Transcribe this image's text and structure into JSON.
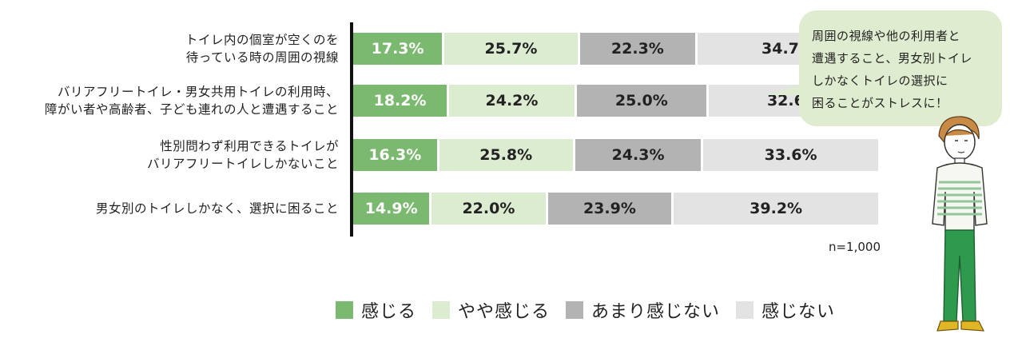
{
  "chart_data": {
    "type": "bar",
    "orientation": "horizontal",
    "stacked": true,
    "normalized_percent": true,
    "categories": [
      [
        "トイレ内の個室が空くのを",
        "待っている時の周囲の視線"
      ],
      [
        "バリアフリートイレ・男女共用トイレの利用時、",
        "障がい者や高齢者、子ども連れの人と遭遇すること"
      ],
      [
        "性別問わず利用できるトイレが",
        "バリアフリートイレしかないこと"
      ],
      [
        "男女別のトイレしかなく、選択に困ること"
      ]
    ],
    "series": [
      {
        "name": "感じる",
        "color": "#7ab96f",
        "values": [
          17.3,
          18.2,
          16.3,
          14.9
        ]
      },
      {
        "name": "やや感じる",
        "color": "#dcecd0",
        "values": [
          25.7,
          24.2,
          25.8,
          22.0
        ]
      },
      {
        "name": "あまり感じない",
        "color": "#b3b3b3",
        "values": [
          22.3,
          25.0,
          24.3,
          23.9
        ]
      },
      {
        "name": "感じない",
        "color": "#e3e3e3",
        "values": [
          34.7,
          32.6,
          33.6,
          39.2
        ]
      }
    ],
    "value_suffix": "%",
    "xlim": [
      0,
      100
    ],
    "grid": false,
    "legend_position": "bottom",
    "note": "n=1,000"
  },
  "callout": {
    "lines": [
      "周囲の視線や他の利用者と",
      "遭遇すること、男女別トイレ",
      "しかなくトイレの選択に",
      "困ることがストレスに！"
    ]
  },
  "illustration": {
    "icon": "person-figure-icon"
  }
}
